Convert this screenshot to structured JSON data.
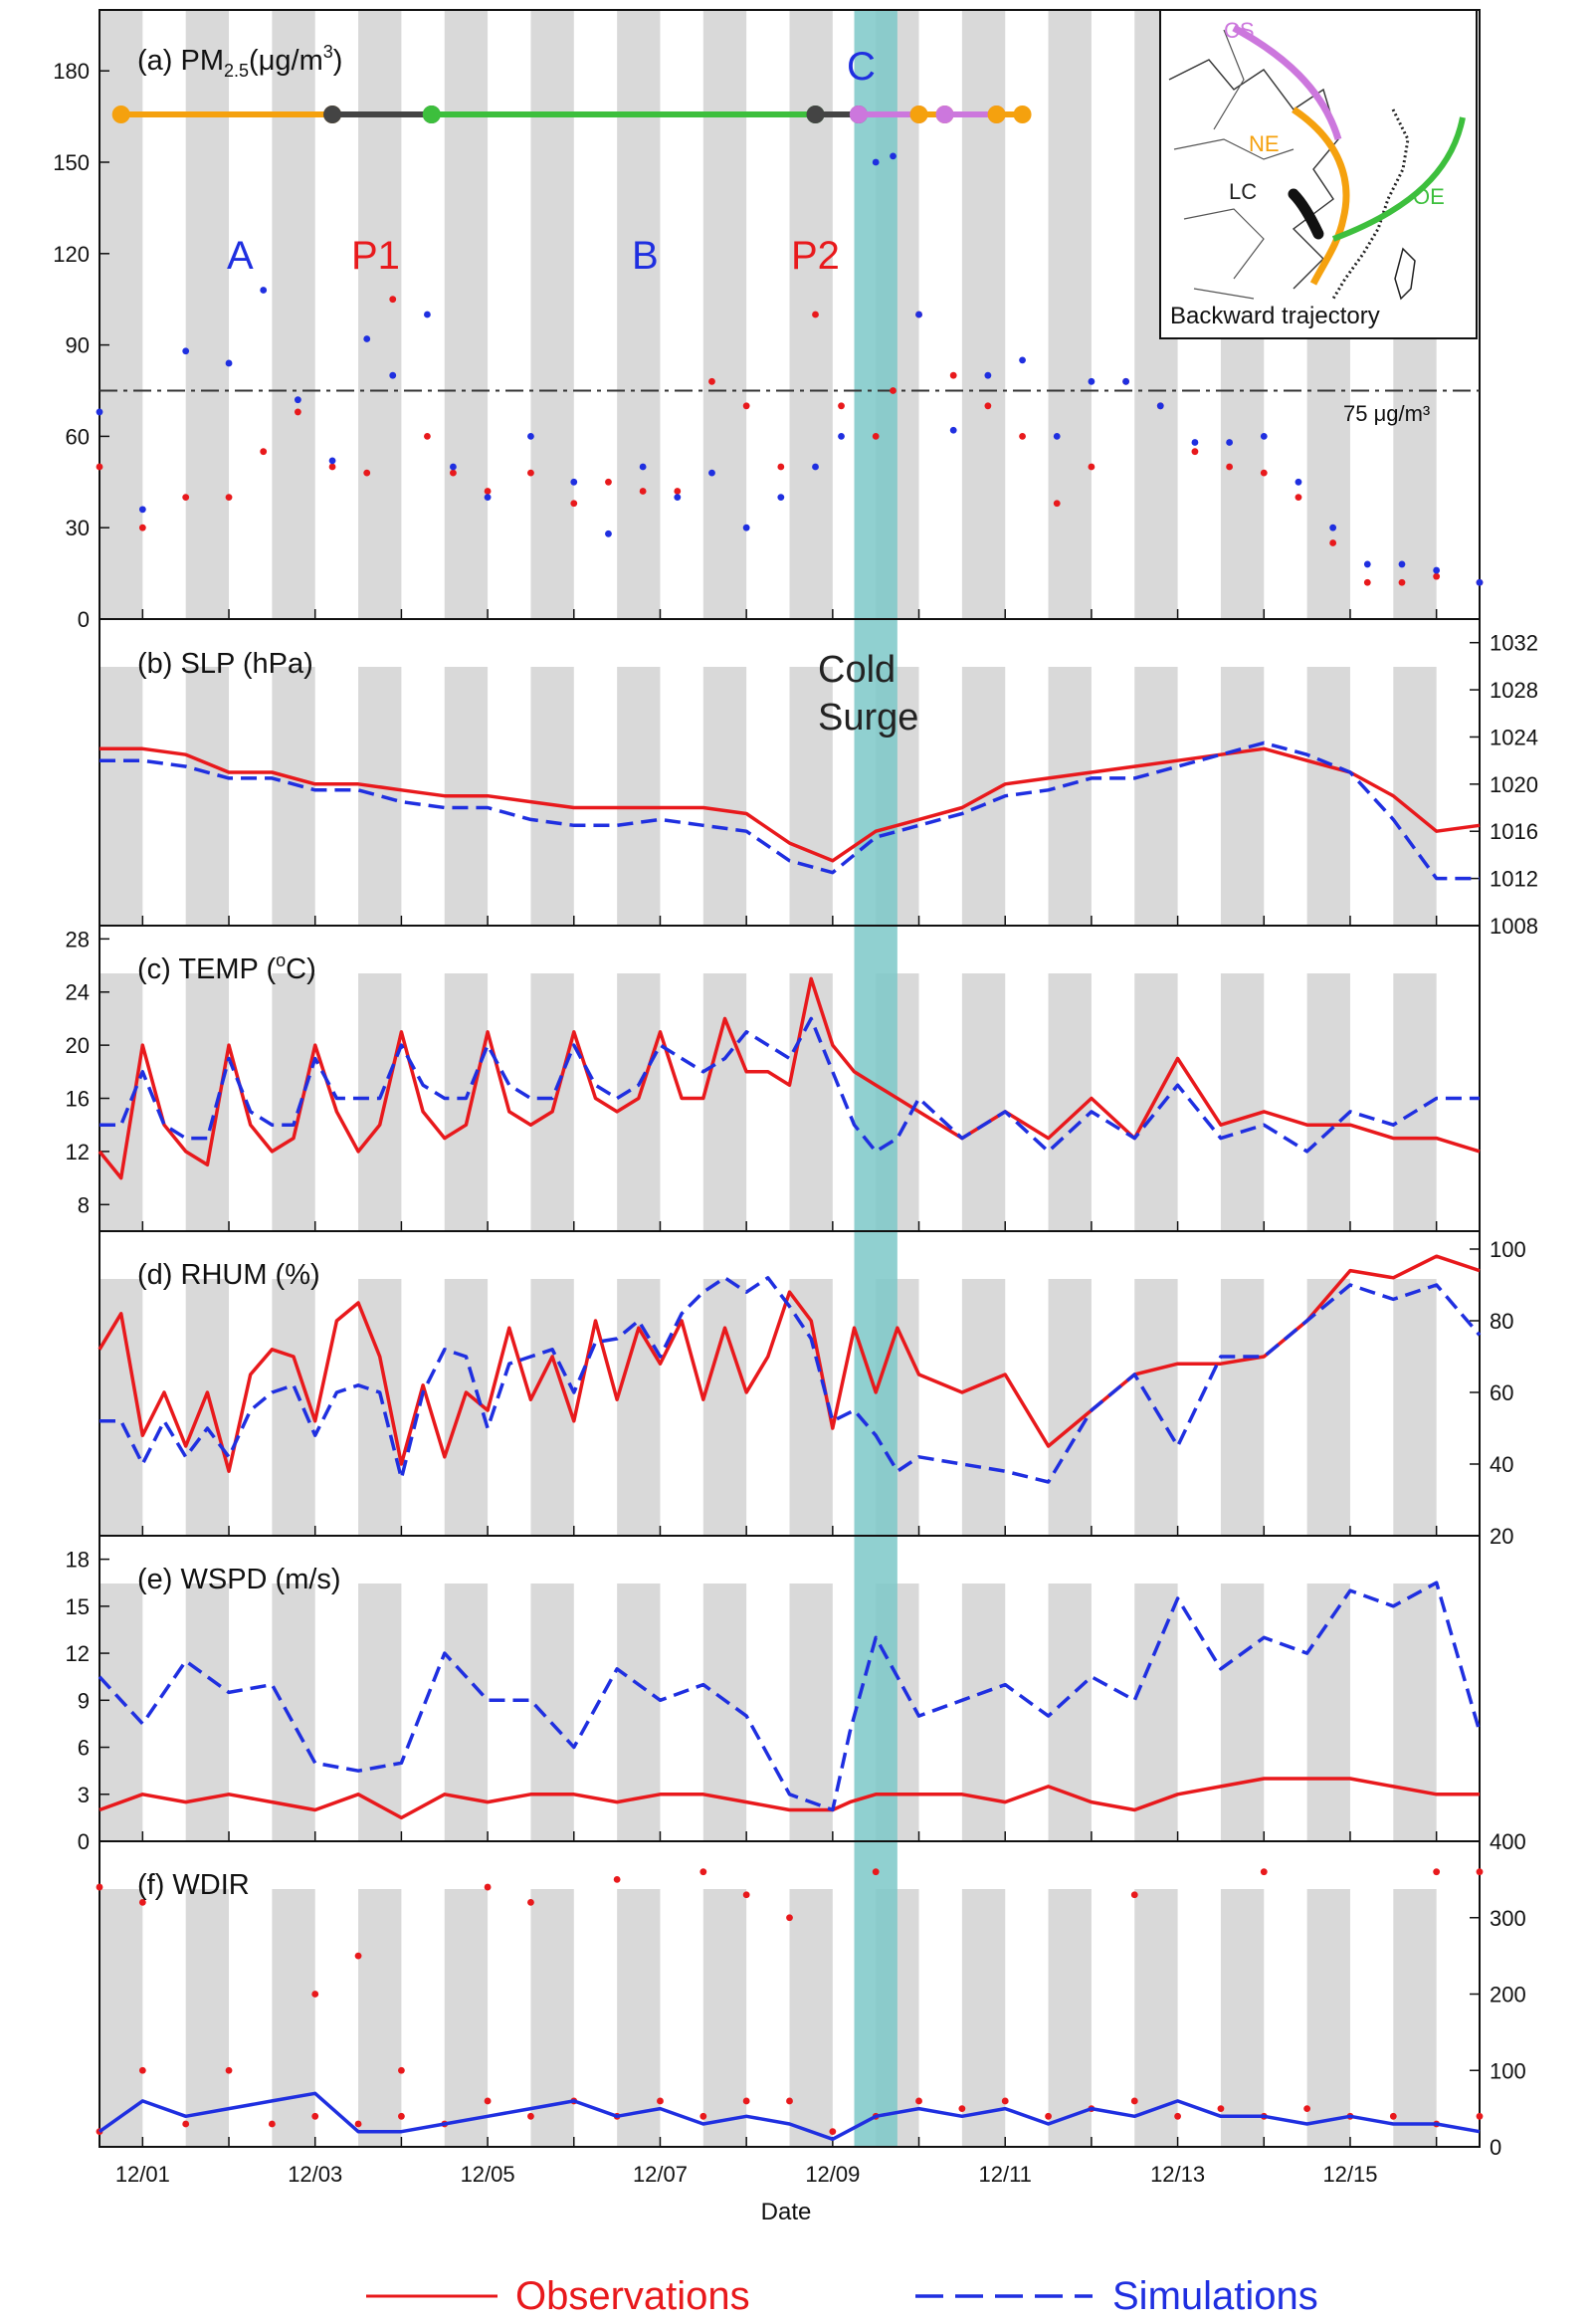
{
  "figure": {
    "xlabel": "Date",
    "x_ticks": [
      "12/01",
      "12/03",
      "12/05",
      "12/07",
      "12/09",
      "12/11",
      "12/13",
      "12/15"
    ],
    "x_range": [
      "11/30 12:00",
      "12/16 12:00"
    ],
    "night_shading": "gray bands every other half-day",
    "cold_surge": {
      "label_line1": "Cold",
      "label_line2": "Surge",
      "start": "12/09 06:00",
      "end": "12/09 18:00",
      "color": "#7cc8c8"
    },
    "legend": {
      "observations": "Observations",
      "simulations": "Simulations",
      "observations_color": "#e8191c",
      "simulations_color": "#1f2fe0"
    }
  },
  "panels": {
    "a": {
      "label": "(a) PM",
      "sub": "2.5",
      "unit": "(μg/m",
      "sup": "3",
      "close": ")",
      "yticks": [
        "0",
        "30",
        "60",
        "90",
        "120",
        "150",
        "180"
      ],
      "ylim": [
        0,
        200
      ],
      "axis_side": "left",
      "threshold": 75,
      "threshold_label": "75 μg/m³",
      "episodes": [
        {
          "name": "A",
          "color": "#1f2fe0"
        },
        {
          "name": "P1",
          "color": "#e8191c"
        },
        {
          "name": "B",
          "color": "#1f2fe0"
        },
        {
          "name": "P2",
          "color": "#e8191c"
        },
        {
          "name": "C",
          "color": "#1f2fe0"
        }
      ],
      "trajectory_bar": {
        "colors": {
          "NE": "#f5a10e",
          "LC": "#444444",
          "OE": "#3dbf3d",
          "CS": "#cc77dd"
        }
      }
    },
    "b": {
      "label": "(b) SLP (hPa)",
      "yticks": [
        "1008",
        "1012",
        "1016",
        "1020",
        "1024",
        "1028",
        "1032"
      ],
      "ylim": [
        1008,
        1034
      ],
      "axis_side": "right"
    },
    "c": {
      "label": "(c) TEMP (",
      "sup": "o",
      "close": "C)",
      "yticks": [
        "8",
        "12",
        "16",
        "20",
        "24",
        "28"
      ],
      "ylim": [
        6,
        29
      ],
      "axis_side": "left"
    },
    "d": {
      "label": "(d) RHUM (%)",
      "yticks": [
        "20",
        "40",
        "60",
        "80",
        "100"
      ],
      "ylim": [
        20,
        105
      ],
      "axis_side": "right"
    },
    "e": {
      "label": "(e) WSPD (m/s)",
      "yticks": [
        "0",
        "3",
        "6",
        "9",
        "12",
        "15",
        "18"
      ],
      "ylim": [
        0,
        19.5
      ],
      "axis_side": "left"
    },
    "f": {
      "label": "(f) WDIR",
      "yticks": [
        "0",
        "100",
        "200",
        "300",
        "400"
      ],
      "ylim": [
        0,
        400
      ],
      "axis_side": "right"
    }
  },
  "inset_map": {
    "caption": "Backward trajectory",
    "labels": {
      "CS": "CS",
      "NE": "NE",
      "LC": "LC",
      "OE": "OE"
    },
    "colors": {
      "CS": "#cc77dd",
      "NE": "#f5a10e",
      "LC": "#111111",
      "OE": "#3dbf3d"
    }
  },
  "chart_data": {
    "type": "line",
    "x_unit": "day of December",
    "series_names": [
      "Observations",
      "Simulations"
    ],
    "pm25": {
      "x": [
        0.5,
        1,
        1.5,
        2,
        2.4,
        2.8,
        3.2,
        3.6,
        3.9,
        4.3,
        4.6,
        5,
        5.5,
        6,
        6.4,
        6.8,
        7.2,
        7.6,
        8,
        8.4,
        8.8,
        9.1,
        9.5,
        9.7,
        10,
        10.4,
        10.8,
        11.2,
        11.6,
        12,
        12.4,
        12.8,
        13.2,
        13.6,
        14,
        14.4,
        14.8,
        15.2,
        15.6,
        16,
        16.5
      ],
      "obs": [
        50,
        30,
        40,
        40,
        55,
        68,
        50,
        48,
        105,
        60,
        48,
        42,
        48,
        38,
        45,
        42,
        42,
        78,
        70,
        50,
        100,
        70,
        60,
        75,
        100,
        80,
        70,
        60,
        38,
        50,
        78,
        70,
        55,
        50,
        48,
        40,
        25,
        12,
        12,
        14,
        12
      ],
      "sim": [
        68,
        36,
        88,
        84,
        108,
        72,
        52,
        92,
        80,
        100,
        50,
        40,
        60,
        45,
        28,
        50,
        40,
        48,
        30,
        40,
        50,
        60,
        150,
        152,
        100,
        62,
        80,
        85,
        60,
        78,
        78,
        70,
        58,
        58,
        60,
        45,
        30,
        18,
        18,
        16,
        12
      ]
    },
    "slp": {
      "x": [
        0.5,
        1,
        1.5,
        2,
        2.5,
        3,
        3.5,
        4,
        4.5,
        5,
        5.5,
        6,
        6.5,
        7,
        7.5,
        8,
        8.5,
        9,
        9.5,
        10,
        10.5,
        11,
        11.5,
        12,
        12.5,
        13,
        13.5,
        14,
        14.5,
        15,
        15.5,
        16,
        16.5
      ],
      "obs": [
        1023,
        1023,
        1022.5,
        1021,
        1021,
        1020,
        1020,
        1019.5,
        1019,
        1019,
        1018.5,
        1018,
        1018,
        1018,
        1018,
        1017.5,
        1015,
        1013.5,
        1016,
        1017,
        1018,
        1020,
        1020.5,
        1021,
        1021.5,
        1022,
        1022.5,
        1023,
        1022,
        1021,
        1019,
        1016,
        1016.5
      ],
      "sim": [
        1022,
        1022,
        1021.5,
        1020.5,
        1020.5,
        1019.5,
        1019.5,
        1018.5,
        1018,
        1018,
        1017,
        1016.5,
        1016.5,
        1017,
        1016.5,
        1016,
        1013.5,
        1012.5,
        1015.5,
        1016.5,
        1017.5,
        1019,
        1019.5,
        1020.5,
        1020.5,
        1021.5,
        1022.5,
        1023.5,
        1022.5,
        1021,
        1017,
        1012,
        1012
      ]
    },
    "temp": {
      "x": [
        0.5,
        0.75,
        1,
        1.25,
        1.5,
        1.75,
        2,
        2.25,
        2.5,
        2.75,
        3,
        3.25,
        3.5,
        3.75,
        4,
        4.25,
        4.5,
        4.75,
        5,
        5.25,
        5.5,
        5.75,
        6,
        6.25,
        6.5,
        6.75,
        7,
        7.25,
        7.5,
        7.75,
        8,
        8.25,
        8.5,
        8.75,
        9,
        9.25,
        9.5,
        9.75,
        10,
        10.5,
        11,
        11.5,
        12,
        12.5,
        13,
        13.5,
        14,
        14.5,
        15,
        15.5,
        16,
        16.5
      ],
      "obs": [
        12,
        10,
        20,
        14,
        12,
        11,
        20,
        14,
        12,
        13,
        20,
        15,
        12,
        14,
        21,
        15,
        13,
        14,
        21,
        15,
        14,
        15,
        21,
        16,
        15,
        16,
        21,
        16,
        16,
        22,
        18,
        18,
        17,
        25,
        20,
        18,
        17,
        16,
        15,
        13,
        15,
        13,
        16,
        13,
        19,
        14,
        15,
        14,
        14,
        13,
        13,
        12
      ],
      "sim": [
        14,
        14,
        18,
        14,
        13,
        13,
        19,
        15,
        14,
        14,
        19,
        16,
        16,
        16,
        20,
        17,
        16,
        16,
        20,
        17,
        16,
        16,
        20,
        17,
        16,
        17,
        20,
        19,
        18,
        19,
        21,
        20,
        19,
        22,
        18,
        14,
        12,
        13,
        16,
        13,
        15,
        12,
        15,
        13,
        17,
        13,
        14,
        12,
        15,
        14,
        16,
        16
      ]
    },
    "rhum": {
      "x": [
        0.5,
        0.75,
        1,
        1.25,
        1.5,
        1.75,
        2,
        2.25,
        2.5,
        2.75,
        3,
        3.25,
        3.5,
        3.75,
        4,
        4.25,
        4.5,
        4.75,
        5,
        5.25,
        5.5,
        5.75,
        6,
        6.25,
        6.5,
        6.75,
        7,
        7.25,
        7.5,
        7.75,
        8,
        8.25,
        8.5,
        8.75,
        9,
        9.25,
        9.5,
        9.75,
        10,
        10.5,
        11,
        11.5,
        12,
        12.5,
        13,
        13.5,
        14,
        14.5,
        15,
        15.5,
        16,
        16.5
      ],
      "obs": [
        72,
        82,
        48,
        60,
        45,
        60,
        38,
        65,
        72,
        70,
        52,
        80,
        85,
        70,
        40,
        62,
        42,
        60,
        55,
        78,
        58,
        70,
        52,
        80,
        58,
        78,
        68,
        80,
        58,
        78,
        60,
        70,
        88,
        80,
        50,
        78,
        60,
        78,
        65,
        60,
        65,
        45,
        55,
        65,
        68,
        68,
        70,
        80,
        94,
        92,
        98,
        94
      ],
      "sim": [
        52,
        52,
        40,
        52,
        42,
        50,
        42,
        55,
        60,
        62,
        48,
        60,
        62,
        60,
        36,
        60,
        72,
        70,
        50,
        68,
        70,
        72,
        60,
        74,
        75,
        80,
        70,
        82,
        88,
        92,
        88,
        92,
        84,
        75,
        52,
        55,
        48,
        38,
        42,
        40,
        38,
        35,
        55,
        65,
        45,
        70,
        70,
        80,
        90,
        86,
        90,
        76
      ]
    },
    "wspd": {
      "x": [
        0.5,
        1,
        1.5,
        2,
        2.5,
        3,
        3.5,
        4,
        4.5,
        5,
        5.5,
        6,
        6.5,
        7,
        7.5,
        8,
        8.5,
        9,
        9.2,
        9.5,
        10,
        10.5,
        11,
        11.5,
        12,
        12.5,
        13,
        13.5,
        14,
        14.5,
        15,
        15.5,
        16,
        16.5
      ],
      "obs_mean": [
        2,
        3,
        2.5,
        3,
        2.5,
        2,
        3,
        1.5,
        3,
        2.5,
        3,
        3,
        2.5,
        3,
        3,
        2.5,
        2,
        2,
        2.5,
        3,
        3,
        3,
        2.5,
        3.5,
        2.5,
        2,
        3,
        3.5,
        4,
        4,
        4,
        3.5,
        3,
        3
      ],
      "sim": [
        10.5,
        7.5,
        11.5,
        9.5,
        10,
        5,
        4.5,
        5,
        12,
        9,
        9,
        6,
        11,
        9,
        10,
        8,
        3,
        2,
        7,
        13,
        8,
        9,
        10,
        8,
        10.5,
        9,
        15.5,
        11,
        13,
        12,
        16,
        15,
        16.5,
        7
      ]
    },
    "wdir": {
      "x": [
        0.5,
        1,
        1.5,
        2,
        2.5,
        3,
        3.5,
        4,
        4.5,
        5,
        5.5,
        6,
        6.5,
        7,
        7.5,
        8,
        8.5,
        9,
        9.5,
        10,
        10.5,
        11,
        11.5,
        12,
        12.5,
        13,
        13.5,
        14,
        14.5,
        15,
        15.5,
        16,
        16.5
      ],
      "obs_low": [
        20,
        100,
        30,
        100,
        30,
        40,
        30,
        40,
        30,
        60,
        40,
        60,
        40,
        60,
        40,
        60,
        60,
        20,
        40,
        60,
        50,
        60,
        40,
        50,
        60,
        40,
        50,
        40,
        50,
        40,
        40,
        30,
        40
      ],
      "obs_high": [
        340,
        320,
        null,
        null,
        null,
        200,
        250,
        100,
        null,
        340,
        320,
        null,
        350,
        null,
        360,
        330,
        300,
        null,
        360,
        null,
        null,
        null,
        null,
        null,
        330,
        null,
        null,
        360,
        null,
        null,
        null,
        360,
        360
      ],
      "sim": [
        20,
        60,
        40,
        50,
        60,
        70,
        20,
        20,
        30,
        40,
        50,
        60,
        40,
        50,
        30,
        40,
        30,
        10,
        40,
        50,
        40,
        50,
        30,
        50,
        40,
        60,
        40,
        40,
        30,
        40,
        30,
        30,
        20
      ]
    }
  }
}
